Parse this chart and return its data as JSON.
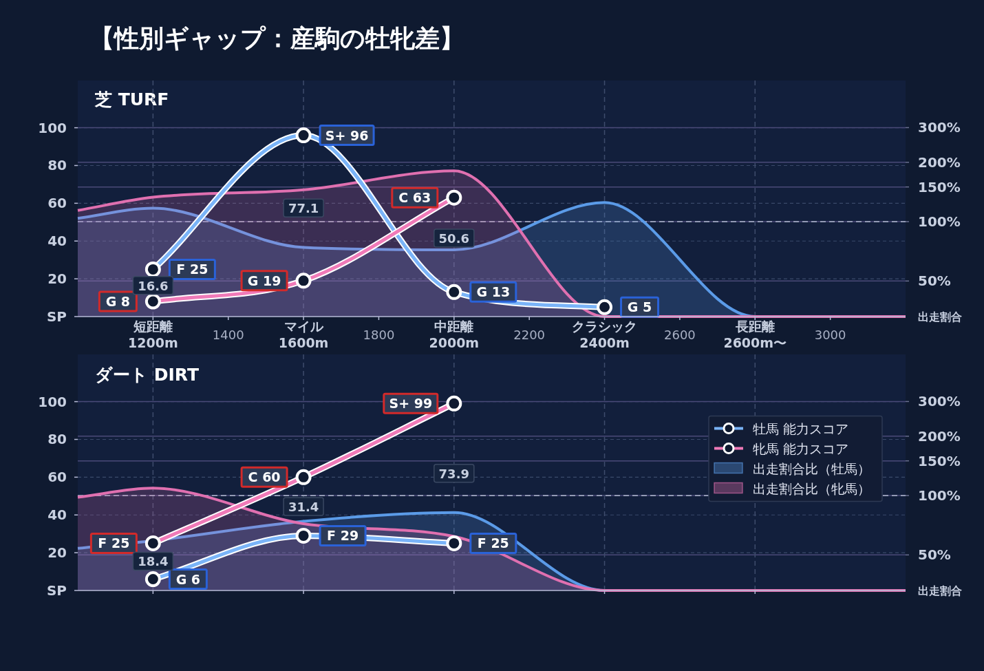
{
  "chart_data": [
    {
      "type": "line",
      "title": "【性別ギャップ：産駒の牡牝差】",
      "subtitle": "芝 TURF",
      "y2label": "出走割合",
      "log": "y2",
      "xlim": [
        1000,
        3200
      ],
      "ylim": [
        0,
        125
      ],
      "y2lim": [
        33,
        520
      ],
      "xticks": [
        {
          "value": 1200,
          "label": "短距離\n1200m"
        },
        1400,
        {
          "value": 1600,
          "label": "マイル\n1600m"
        },
        1800,
        {
          "value": 2000,
          "label": "中距離\n2000m"
        },
        2200,
        {
          "value": 2400,
          "label": "クラシック\n2400m"
        },
        2600,
        {
          "value": 2800,
          "label": "長距離\n2600m〜"
        },
        3000
      ],
      "yticks": [
        {
          "value": 0,
          "label": "SP"
        },
        20,
        40,
        60,
        80,
        100
      ],
      "y2ticks": [
        {
          "value": 50,
          "label": "50%"
        },
        {
          "value": 100,
          "label": "100%"
        },
        {
          "value": 150,
          "label": "150%"
        },
        {
          "value": 200,
          "label": "200%"
        },
        {
          "value": 300,
          "label": "300%"
        }
      ],
      "grid": true,
      "ref_lines": [
        {
          "axis": "y2",
          "value": 100,
          "label": null
        }
      ],
      "series": [
        {
          "type": "area",
          "axis": "y2",
          "color": "#5b9be8",
          "x": [
            1000,
            1200,
            1600,
            2000,
            2400,
            2800,
            3200
          ],
          "values": [
            104,
            117,
            74,
            72,
            125,
            33,
            33
          ]
        },
        {
          "type": "area",
          "axis": "y2",
          "color": "#e070b0",
          "x": [
            1000,
            1200,
            1600,
            2000,
            2400,
            2800,
            3200
          ],
          "values": [
            114,
            133,
            145,
            181,
            33,
            33,
            33
          ]
        },
        {
          "marker": "circle",
          "color": "#7ab4f8",
          "x": [
            1200,
            1600,
            2000,
            2400
          ],
          "values": [
            25,
            96,
            13,
            5
          ],
          "value_labels": [
            "F 25",
            "S+ 96",
            "G 13",
            "G 5"
          ]
        },
        {
          "marker": "circle",
          "color": "#f07ab8",
          "x": [
            1200,
            1600,
            2000
          ],
          "values": [
            8,
            19,
            63
          ],
          "value_labels": [
            "G 8",
            "G 19",
            "C 63"
          ]
        }
      ],
      "annotations": [
        "16.6",
        "77.1",
        "50.6"
      ]
    },
    {
      "type": "line",
      "title": "ダート DIRT",
      "y2label": "出走割合",
      "log": "y2",
      "xlim": [
        1000,
        3200
      ],
      "ylim": [
        0,
        125
      ],
      "y2lim": [
        33,
        520
      ],
      "tick_labels": "y",
      "xticks": [
        {
          "value": 1200,
          "label": null
        },
        {
          "value": 1600,
          "label": null
        },
        {
          "value": 2000,
          "label": null
        },
        {
          "value": 2400,
          "label": null
        },
        {
          "value": 2800,
          "label": null
        }
      ],
      "yticks": [
        {
          "value": 0,
          "label": "SP"
        },
        20,
        40,
        60,
        80,
        100
      ],
      "y2ticks": [
        {
          "value": 50,
          "label": "50%"
        },
        {
          "value": 100,
          "label": "100%"
        },
        {
          "value": 150,
          "label": "150%"
        },
        {
          "value": 200,
          "label": "200%"
        },
        {
          "value": 300,
          "label": "300%"
        }
      ],
      "grid": true,
      "legend": "right",
      "ref_lines": [
        {
          "axis": "y2",
          "value": 100,
          "label": null
        }
      ],
      "series": [
        {
          "type": "area",
          "axis": "y2",
          "name": "出走割合比（牡馬）",
          "color": "#5b9be8",
          "x": [
            1000,
            1200,
            1600,
            2000,
            2400,
            2800,
            3200
          ],
          "values": [
            54,
            59,
            74,
            82,
            33,
            33,
            33
          ]
        },
        {
          "type": "area",
          "axis": "y2",
          "name": "出走割合比（牝馬）",
          "color": "#e070b0",
          "x": [
            1000,
            1200,
            1600,
            2000,
            2400,
            2800,
            3200
          ],
          "values": [
            98,
            109,
            72,
            62,
            33,
            33,
            33
          ]
        },
        {
          "name": "牡馬 能力スコア",
          "marker": "circle",
          "color": "#7ab4f8",
          "x": [
            1200,
            1600,
            2000
          ],
          "values": [
            6,
            29,
            25
          ],
          "value_labels": [
            "G 6",
            "F 29",
            "F 25"
          ]
        },
        {
          "name": "牝馬 能力スコア",
          "marker": "circle",
          "color": "#f07ab8",
          "x": [
            1200,
            1600,
            2000
          ],
          "values": [
            25,
            60,
            99
          ],
          "value_labels": [
            "F 25",
            "C 60",
            "S+ 99"
          ]
        }
      ],
      "annotations": [
        "18.4",
        "31.4",
        "73.9"
      ]
    }
  ]
}
